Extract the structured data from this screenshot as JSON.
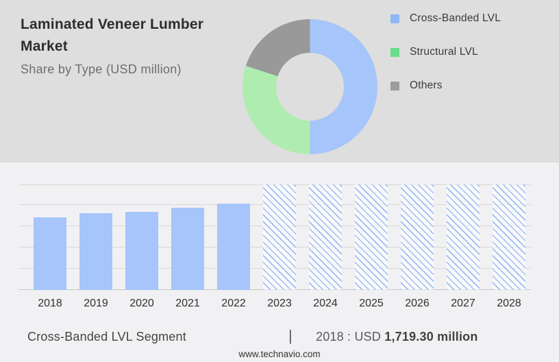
{
  "header": {
    "title_line1": "Laminated Veneer Lumber",
    "title_line2": "Market",
    "subtitle": "Share by Type (USD million)"
  },
  "legend": {
    "items": [
      {
        "label": "Cross-Banded LVL",
        "color": "#8fb7f6"
      },
      {
        "label": "Structural LVL",
        "color": "#68dd8b"
      },
      {
        "label": "Others",
        "color": "#9c9c9c"
      }
    ]
  },
  "chart_data": [
    {
      "type": "pie",
      "title": "Share by Type (USD million)",
      "donut": true,
      "labels": [
        "Cross-Banded LVL",
        "Structural LVL",
        "Others"
      ],
      "values_pct": [
        50,
        30,
        20
      ],
      "colors": [
        "#a6c5fa",
        "#aeecb0",
        "#999999"
      ],
      "legend_position": "right"
    },
    {
      "type": "bar",
      "categories": [
        "2018",
        "2019",
        "2020",
        "2021",
        "2022",
        "2023",
        "2024",
        "2025",
        "2026",
        "2027",
        "2028"
      ],
      "series": [
        {
          "name": "Cross-Banded LVL market size (USD million)",
          "values": [
            1719.3,
            1817,
            1858,
            1949,
            2047,
            null,
            null,
            null,
            null,
            null,
            null
          ]
        }
      ],
      "forecast_categories": [
        "2023",
        "2024",
        "2025",
        "2026",
        "2027",
        "2028"
      ],
      "forecast_style": "hatched-full-height",
      "xlabel": "",
      "ylabel": "",
      "ylim": [
        0,
        2500
      ],
      "grid": true,
      "gridline_step": 500,
      "bar_color": "#a6c5fa",
      "hatch_line_color": "#9bbdf5"
    }
  ],
  "footer": {
    "segment_label": "Cross-Banded LVL Segment",
    "separator": "|",
    "value_prefix": "2018 : USD",
    "value_bold": "1,719.30 million",
    "website": "www.technavio.com"
  },
  "colors": {
    "top_bg": "#dedede",
    "bottom_bg": "#f1f1f3",
    "gridline": "#d7d7d7",
    "axis": "#c4c4c4"
  }
}
